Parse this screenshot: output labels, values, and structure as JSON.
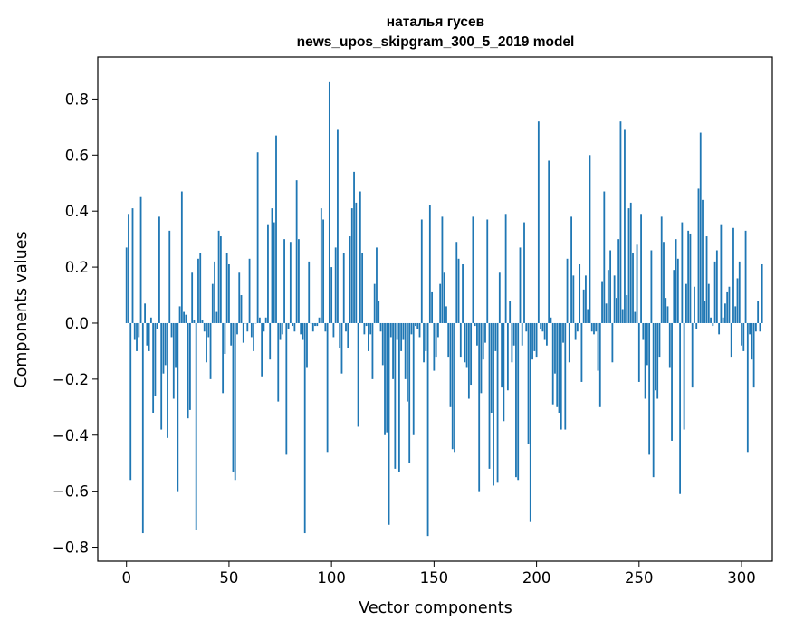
{
  "chart_data": {
    "type": "bar",
    "title_line1": "наталья гусев",
    "title_line2": "news_upos_skipgram_300_5_2019 model",
    "xlabel": "Vector components",
    "ylabel": "Components values",
    "xlim": [
      -14,
      315
    ],
    "ylim": [
      -0.85,
      0.95
    ],
    "xticks": [
      0,
      50,
      100,
      150,
      200,
      250,
      300
    ],
    "xtick_labels": [
      "0",
      "50",
      "100",
      "150",
      "200",
      "250",
      "300"
    ],
    "yticks": [
      -0.8,
      -0.6,
      -0.4,
      -0.2,
      0.0,
      0.2,
      0.4,
      0.6,
      0.8
    ],
    "ytick_labels": [
      "−0.8",
      "−0.6",
      "−0.4",
      "−0.2",
      "0.0",
      "0.2",
      "0.4",
      "0.6",
      "0.8"
    ],
    "bar_color": "#1f77b4",
    "values": [
      0.27,
      0.39,
      -0.56,
      0.41,
      -0.06,
      -0.1,
      -0.05,
      0.45,
      -0.75,
      0.07,
      -0.08,
      -0.1,
      0.02,
      -0.32,
      -0.26,
      -0.02,
      0.38,
      -0.38,
      -0.18,
      -0.15,
      -0.41,
      0.33,
      -0.05,
      -0.27,
      -0.16,
      -0.6,
      0.06,
      0.47,
      0.04,
      0.03,
      -0.34,
      -0.31,
      0.18,
      0.01,
      -0.74,
      0.23,
      0.25,
      0.01,
      -0.03,
      -0.14,
      -0.05,
      -0.2,
      0.14,
      0.22,
      0.04,
      0.33,
      0.31,
      -0.25,
      -0.11,
      0.25,
      0.21,
      -0.08,
      -0.53,
      -0.56,
      -0.04,
      0.18,
      0.1,
      -0.07,
      0.0,
      -0.03,
      0.23,
      -0.05,
      -0.1,
      0.0,
      0.61,
      0.02,
      -0.19,
      -0.03,
      0.02,
      0.35,
      -0.13,
      0.41,
      0.36,
      0.67,
      -0.28,
      -0.06,
      -0.04,
      0.3,
      -0.47,
      -0.02,
      0.29,
      -0.01,
      -0.03,
      0.51,
      0.3,
      -0.04,
      -0.06,
      -0.75,
      -0.16,
      0.22,
      0.0,
      -0.03,
      -0.01,
      -0.01,
      0.02,
      0.41,
      0.37,
      -0.03,
      -0.46,
      0.86,
      0.2,
      -0.05,
      0.27,
      0.69,
      -0.09,
      -0.18,
      0.25,
      -0.03,
      -0.09,
      0.31,
      0.41,
      0.54,
      0.43,
      -0.37,
      0.47,
      0.25,
      -0.04,
      -0.01,
      -0.1,
      -0.04,
      -0.2,
      0.14,
      0.27,
      0.08,
      -0.03,
      -0.15,
      -0.4,
      -0.39,
      -0.72,
      -0.05,
      -0.2,
      -0.52,
      -0.06,
      -0.53,
      -0.1,
      -0.06,
      -0.2,
      -0.28,
      -0.5,
      -0.04,
      -0.4,
      -0.01,
      -0.02,
      -0.05,
      0.37,
      -0.14,
      -0.1,
      -0.76,
      0.42,
      0.11,
      -0.17,
      -0.12,
      -0.05,
      0.14,
      0.38,
      0.18,
      0.06,
      -0.12,
      -0.3,
      -0.45,
      -0.46,
      0.29,
      0.23,
      -0.12,
      0.21,
      -0.14,
      -0.16,
      -0.27,
      -0.22,
      0.38,
      -0.01,
      -0.08,
      -0.6,
      -0.25,
      -0.13,
      -0.07,
      0.37,
      -0.52,
      -0.32,
      -0.58,
      -0.1,
      -0.57,
      0.18,
      -0.23,
      -0.35,
      0.39,
      -0.24,
      0.08,
      -0.14,
      -0.08,
      -0.55,
      -0.56,
      0.27,
      -0.08,
      0.36,
      -0.03,
      -0.43,
      -0.71,
      -0.13,
      -0.1,
      -0.12,
      0.72,
      -0.02,
      -0.03,
      -0.06,
      -0.08,
      0.58,
      0.02,
      -0.29,
      -0.18,
      -0.3,
      -0.32,
      -0.38,
      -0.07,
      -0.38,
      0.23,
      -0.14,
      0.38,
      0.17,
      -0.06,
      -0.03,
      0.21,
      -0.21,
      0.12,
      0.17,
      0.05,
      0.6,
      -0.03,
      -0.04,
      -0.03,
      -0.17,
      -0.3,
      0.15,
      0.47,
      0.07,
      0.19,
      0.26,
      -0.14,
      0.17,
      0.09,
      0.3,
      0.72,
      0.05,
      0.69,
      0.1,
      0.41,
      0.43,
      0.25,
      0.04,
      0.28,
      -0.21,
      0.39,
      -0.06,
      -0.27,
      -0.15,
      -0.47,
      0.26,
      -0.55,
      -0.24,
      -0.27,
      -0.12,
      0.38,
      0.29,
      0.09,
      0.06,
      -0.16,
      -0.42,
      0.19,
      0.3,
      0.23,
      -0.61,
      0.36,
      -0.38,
      0.14,
      0.33,
      0.32,
      -0.23,
      0.13,
      -0.02,
      0.48,
      0.68,
      0.44,
      0.08,
      0.31,
      0.14,
      0.02,
      -0.01,
      0.22,
      0.26,
      -0.04,
      0.35,
      0.02,
      0.07,
      0.11,
      0.13,
      -0.12,
      0.34,
      0.06,
      0.16,
      0.22,
      -0.08,
      -0.1,
      0.33,
      -0.46,
      -0.04,
      -0.13,
      -0.23,
      -0.03,
      0.08,
      -0.03,
      0.21
    ]
  }
}
